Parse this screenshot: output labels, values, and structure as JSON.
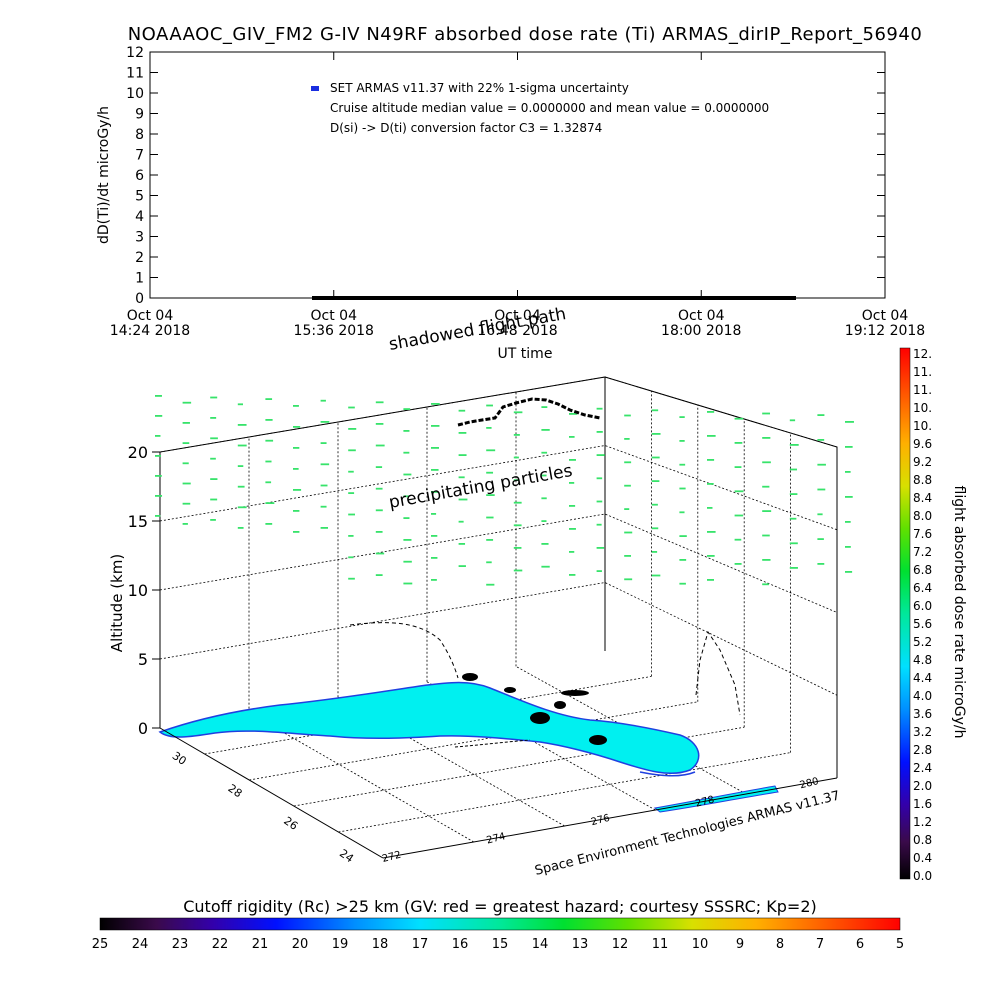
{
  "title": "NOAAAOC_GIV_FM2 G-IV    N49RF  absorbed dose rate (Ti) ARMAS_dirIP_Report_56940",
  "colors": {
    "flight_dots": "#1a2ee0",
    "particles": "#37e36a",
    "land": "#00f0f0",
    "land_outline": "#2040e0",
    "track": "#000000"
  },
  "chart_data": [
    {
      "type": "scatter",
      "title": "NOAAAOC_GIV_FM2 G-IV    N49RF  absorbed dose rate (Ti) ARMAS_dirIP_Report_56940",
      "ylabel": "dD(Ti)/dt microGy/h",
      "xlabel": "UT time",
      "ylim": [
        0,
        12
      ],
      "yticks": [
        "0",
        "1",
        "2",
        "3",
        "4",
        "5",
        "6",
        "7",
        "8",
        "9",
        "10",
        "11",
        "12"
      ],
      "xticks": [
        {
          "line1": "Oct 04",
          "line2": "14:24 2018"
        },
        {
          "line1": "Oct 04",
          "line2": "15:36 2018"
        },
        {
          "line1": "Oct 04",
          "line2": "16:48 2018"
        },
        {
          "line1": "Oct 04",
          "line2": "18:00 2018"
        },
        {
          "line1": "Oct 04",
          "line2": "19:12 2018"
        }
      ],
      "legend": {
        "series": "SET ARMAS v11.37 with 22% 1-sigma uncertainty",
        "note1": "Cruise altitude median value = 0.0000000 and mean value = 0.0000000",
        "note2": "D(si) -> D(ti) conversion factor C3 = 1.32874"
      },
      "series": [
        {
          "name": "SET ARMAS v11.37 with 22% 1-sigma uncertainty",
          "x_start": "15:36",
          "x_end": "18:45",
          "y": 0
        }
      ],
      "grid": false
    },
    {
      "type": "scatter",
      "subtype": "3d-trajectory",
      "zlabel": "Altitude (km)",
      "zticks": [
        "0",
        "5",
        "10",
        "15",
        "20"
      ],
      "lat_ticks": [
        "30",
        "28",
        "26",
        "24"
      ],
      "lon_ticks": [
        "272",
        "274",
        "276",
        "278",
        "280"
      ],
      "annotations": {
        "shadowed": "shadowed flight path",
        "precip": "precipitating particles",
        "credit": "Space Environment Technologies ARMAS v11.37"
      },
      "grid": true
    },
    {
      "type": "heatmap",
      "orientation": "vertical",
      "label": "flight absorbed dose rate microGy/h",
      "ticks": [
        "12.",
        "11.",
        "11.",
        "10.",
        "10.",
        "9.6",
        "9.2",
        "8.8",
        "8.4",
        "8.0",
        "7.6",
        "7.2",
        "6.8",
        "6.4",
        "6.0",
        "5.6",
        "5.2",
        "4.8",
        "4.4",
        "4.0",
        "3.6",
        "3.2",
        "2.8",
        "2.4",
        "2.0",
        "1.6",
        "1.2",
        "0.8",
        "0.4",
        "0.0"
      ]
    },
    {
      "type": "heatmap",
      "orientation": "horizontal",
      "label": "Cutoff rigidity (Rc) >25 km (GV: red = greatest hazard; courtesy SSSRC; Kp=2)",
      "ticks": [
        "25",
        "24",
        "23",
        "22",
        "21",
        "20",
        "19",
        "18",
        "17",
        "16",
        "15",
        "14",
        "13",
        "12",
        "11",
        "10",
        "9",
        "8",
        "7",
        "6",
        "5"
      ]
    }
  ]
}
